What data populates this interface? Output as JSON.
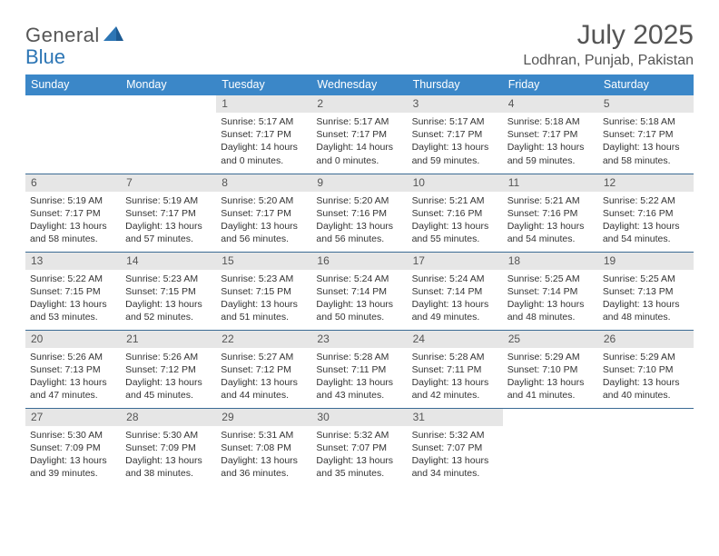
{
  "brand": {
    "word1": "General",
    "word2": "Blue"
  },
  "title": "July 2025",
  "location": "Lodhran, Punjab, Pakistan",
  "weekdays": [
    "Sunday",
    "Monday",
    "Tuesday",
    "Wednesday",
    "Thursday",
    "Friday",
    "Saturday"
  ],
  "colors": {
    "header_bg": "#3b87c8",
    "header_text": "#ffffff",
    "daynum_bg": "#e6e6e6",
    "rule": "#3b6b94",
    "title_text": "#555555",
    "brand_blue": "#2d76b5"
  },
  "rows": [
    [
      null,
      null,
      {
        "n": "1",
        "sr": "Sunrise: 5:17 AM",
        "ss": "Sunset: 7:17 PM",
        "d1": "Daylight: 14 hours",
        "d2": "and 0 minutes."
      },
      {
        "n": "2",
        "sr": "Sunrise: 5:17 AM",
        "ss": "Sunset: 7:17 PM",
        "d1": "Daylight: 14 hours",
        "d2": "and 0 minutes."
      },
      {
        "n": "3",
        "sr": "Sunrise: 5:17 AM",
        "ss": "Sunset: 7:17 PM",
        "d1": "Daylight: 13 hours",
        "d2": "and 59 minutes."
      },
      {
        "n": "4",
        "sr": "Sunrise: 5:18 AM",
        "ss": "Sunset: 7:17 PM",
        "d1": "Daylight: 13 hours",
        "d2": "and 59 minutes."
      },
      {
        "n": "5",
        "sr": "Sunrise: 5:18 AM",
        "ss": "Sunset: 7:17 PM",
        "d1": "Daylight: 13 hours",
        "d2": "and 58 minutes."
      }
    ],
    [
      {
        "n": "6",
        "sr": "Sunrise: 5:19 AM",
        "ss": "Sunset: 7:17 PM",
        "d1": "Daylight: 13 hours",
        "d2": "and 58 minutes."
      },
      {
        "n": "7",
        "sr": "Sunrise: 5:19 AM",
        "ss": "Sunset: 7:17 PM",
        "d1": "Daylight: 13 hours",
        "d2": "and 57 minutes."
      },
      {
        "n": "8",
        "sr": "Sunrise: 5:20 AM",
        "ss": "Sunset: 7:17 PM",
        "d1": "Daylight: 13 hours",
        "d2": "and 56 minutes."
      },
      {
        "n": "9",
        "sr": "Sunrise: 5:20 AM",
        "ss": "Sunset: 7:16 PM",
        "d1": "Daylight: 13 hours",
        "d2": "and 56 minutes."
      },
      {
        "n": "10",
        "sr": "Sunrise: 5:21 AM",
        "ss": "Sunset: 7:16 PM",
        "d1": "Daylight: 13 hours",
        "d2": "and 55 minutes."
      },
      {
        "n": "11",
        "sr": "Sunrise: 5:21 AM",
        "ss": "Sunset: 7:16 PM",
        "d1": "Daylight: 13 hours",
        "d2": "and 54 minutes."
      },
      {
        "n": "12",
        "sr": "Sunrise: 5:22 AM",
        "ss": "Sunset: 7:16 PM",
        "d1": "Daylight: 13 hours",
        "d2": "and 54 minutes."
      }
    ],
    [
      {
        "n": "13",
        "sr": "Sunrise: 5:22 AM",
        "ss": "Sunset: 7:15 PM",
        "d1": "Daylight: 13 hours",
        "d2": "and 53 minutes."
      },
      {
        "n": "14",
        "sr": "Sunrise: 5:23 AM",
        "ss": "Sunset: 7:15 PM",
        "d1": "Daylight: 13 hours",
        "d2": "and 52 minutes."
      },
      {
        "n": "15",
        "sr": "Sunrise: 5:23 AM",
        "ss": "Sunset: 7:15 PM",
        "d1": "Daylight: 13 hours",
        "d2": "and 51 minutes."
      },
      {
        "n": "16",
        "sr": "Sunrise: 5:24 AM",
        "ss": "Sunset: 7:14 PM",
        "d1": "Daylight: 13 hours",
        "d2": "and 50 minutes."
      },
      {
        "n": "17",
        "sr": "Sunrise: 5:24 AM",
        "ss": "Sunset: 7:14 PM",
        "d1": "Daylight: 13 hours",
        "d2": "and 49 minutes."
      },
      {
        "n": "18",
        "sr": "Sunrise: 5:25 AM",
        "ss": "Sunset: 7:14 PM",
        "d1": "Daylight: 13 hours",
        "d2": "and 48 minutes."
      },
      {
        "n": "19",
        "sr": "Sunrise: 5:25 AM",
        "ss": "Sunset: 7:13 PM",
        "d1": "Daylight: 13 hours",
        "d2": "and 48 minutes."
      }
    ],
    [
      {
        "n": "20",
        "sr": "Sunrise: 5:26 AM",
        "ss": "Sunset: 7:13 PM",
        "d1": "Daylight: 13 hours",
        "d2": "and 47 minutes."
      },
      {
        "n": "21",
        "sr": "Sunrise: 5:26 AM",
        "ss": "Sunset: 7:12 PM",
        "d1": "Daylight: 13 hours",
        "d2": "and 45 minutes."
      },
      {
        "n": "22",
        "sr": "Sunrise: 5:27 AM",
        "ss": "Sunset: 7:12 PM",
        "d1": "Daylight: 13 hours",
        "d2": "and 44 minutes."
      },
      {
        "n": "23",
        "sr": "Sunrise: 5:28 AM",
        "ss": "Sunset: 7:11 PM",
        "d1": "Daylight: 13 hours",
        "d2": "and 43 minutes."
      },
      {
        "n": "24",
        "sr": "Sunrise: 5:28 AM",
        "ss": "Sunset: 7:11 PM",
        "d1": "Daylight: 13 hours",
        "d2": "and 42 minutes."
      },
      {
        "n": "25",
        "sr": "Sunrise: 5:29 AM",
        "ss": "Sunset: 7:10 PM",
        "d1": "Daylight: 13 hours",
        "d2": "and 41 minutes."
      },
      {
        "n": "26",
        "sr": "Sunrise: 5:29 AM",
        "ss": "Sunset: 7:10 PM",
        "d1": "Daylight: 13 hours",
        "d2": "and 40 minutes."
      }
    ],
    [
      {
        "n": "27",
        "sr": "Sunrise: 5:30 AM",
        "ss": "Sunset: 7:09 PM",
        "d1": "Daylight: 13 hours",
        "d2": "and 39 minutes."
      },
      {
        "n": "28",
        "sr": "Sunrise: 5:30 AM",
        "ss": "Sunset: 7:09 PM",
        "d1": "Daylight: 13 hours",
        "d2": "and 38 minutes."
      },
      {
        "n": "29",
        "sr": "Sunrise: 5:31 AM",
        "ss": "Sunset: 7:08 PM",
        "d1": "Daylight: 13 hours",
        "d2": "and 36 minutes."
      },
      {
        "n": "30",
        "sr": "Sunrise: 5:32 AM",
        "ss": "Sunset: 7:07 PM",
        "d1": "Daylight: 13 hours",
        "d2": "and 35 minutes."
      },
      {
        "n": "31",
        "sr": "Sunrise: 5:32 AM",
        "ss": "Sunset: 7:07 PM",
        "d1": "Daylight: 13 hours",
        "d2": "and 34 minutes."
      },
      null,
      null
    ]
  ]
}
